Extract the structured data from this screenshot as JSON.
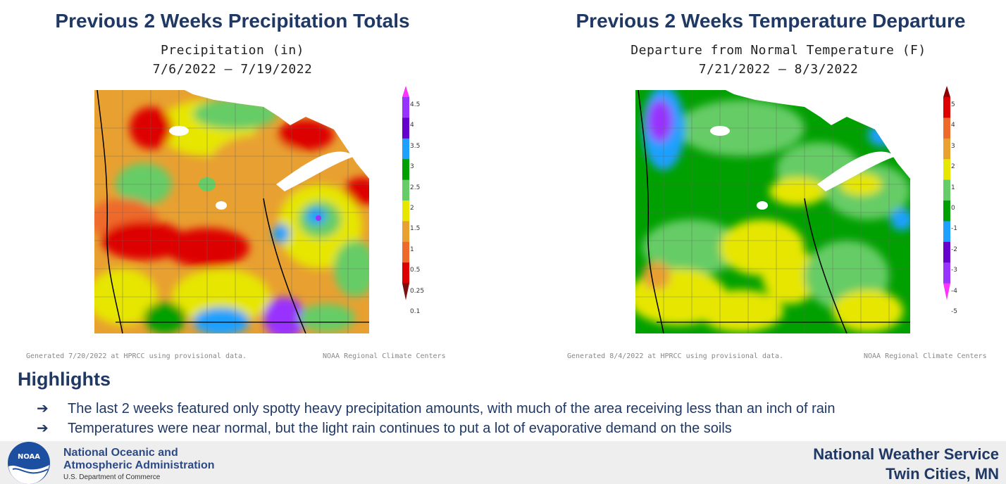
{
  "left_panel": {
    "title": "Previous 2 Weeks Precipitation Totals",
    "subtitle_line1": "Precipitation (in)",
    "subtitle_line2": "7/6/2022 – 7/19/2022",
    "footnote_left": "Generated 7/20/2022 at HPRCC using provisional data.",
    "footnote_right": "NOAA Regional Climate Centers",
    "legend": {
      "labels": [
        "4.5",
        "4",
        "3.5",
        "3",
        "2.5",
        "2",
        "1.5",
        "1",
        "0.5",
        "0.25",
        "0.1"
      ],
      "colors": [
        "#ff33ff",
        "#9933ff",
        "#6600cc",
        "#1ea0ff",
        "#00a000",
        "#66cc66",
        "#e6e600",
        "#e8a030",
        "#ee6a2a",
        "#dd0000",
        "#7a1010"
      ]
    }
  },
  "right_panel": {
    "title": "Previous 2 Weeks Temperature Departure",
    "subtitle_line1": "Departure from Normal Temperature (F)",
    "subtitle_line2": "7/21/2022 – 8/3/2022",
    "footnote_left": "Generated 8/4/2022 at HPRCC using provisional data.",
    "footnote_right": "NOAA Regional Climate Centers",
    "legend": {
      "labels": [
        "5",
        "4",
        "3",
        "2",
        "1",
        "0",
        "-1",
        "-2",
        "-3",
        "-4",
        "-5"
      ],
      "colors": [
        "#8b0000",
        "#dd0000",
        "#ee6a2a",
        "#e8a030",
        "#e6e600",
        "#66cc66",
        "#00a000",
        "#1ea0ff",
        "#6600cc",
        "#9933ff",
        "#ff33ff"
      ]
    }
  },
  "highlights": {
    "heading": "Highlights",
    "bullets": [
      "The last 2 weeks featured only spotty heavy precipitation amounts, with much of the area receiving less than an inch of rain",
      "Temperatures were near normal, but the light rain continues to put a lot of evaporative demand on the soils"
    ],
    "arrow": "➔"
  },
  "footer": {
    "noaa_line1": "National Oceanic and",
    "noaa_line2": "Atmospheric Administration",
    "noaa_line3": "U.S. Department of Commerce",
    "logo_text": "NOAA",
    "nws_line1": "National Weather Service",
    "nws_line2": "Twin Cities, MN"
  }
}
